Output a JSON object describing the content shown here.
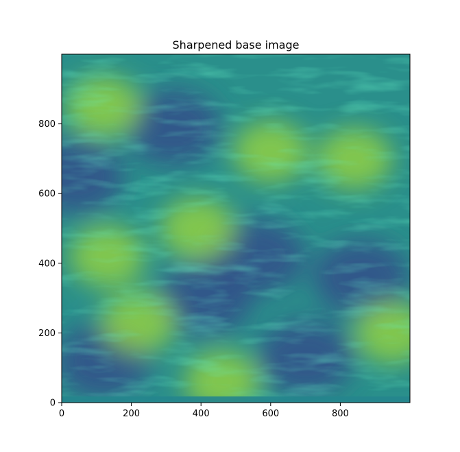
{
  "chart_data": {
    "type": "heatmap",
    "title": "Sharpened base image",
    "xlabel": "",
    "ylabel": "",
    "colormap": "viridis",
    "image_size": [
      1000,
      1000
    ],
    "xlim": [
      0,
      1000
    ],
    "ylim": [
      0,
      1000
    ],
    "y_origin": "lower",
    "x_ticks": [
      0,
      200,
      400,
      600,
      800
    ],
    "y_ticks": [
      0,
      200,
      400,
      600,
      800
    ],
    "grid": false,
    "dark_regions": [
      {
        "x": 40,
        "y": 650
      },
      {
        "x": 320,
        "y": 790
      },
      {
        "x": 560,
        "y": 420
      },
      {
        "x": 860,
        "y": 360
      },
      {
        "x": 120,
        "y": 120
      },
      {
        "x": 410,
        "y": 300
      },
      {
        "x": 700,
        "y": 130
      }
    ],
    "bright_regions": [
      {
        "x": 220,
        "y": 230
      },
      {
        "x": 600,
        "y": 720
      },
      {
        "x": 840,
        "y": 700
      },
      {
        "x": 390,
        "y": 500
      },
      {
        "x": 950,
        "y": 200
      },
      {
        "x": 130,
        "y": 420
      },
      {
        "x": 120,
        "y": 850
      },
      {
        "x": 460,
        "y": 60
      }
    ]
  }
}
